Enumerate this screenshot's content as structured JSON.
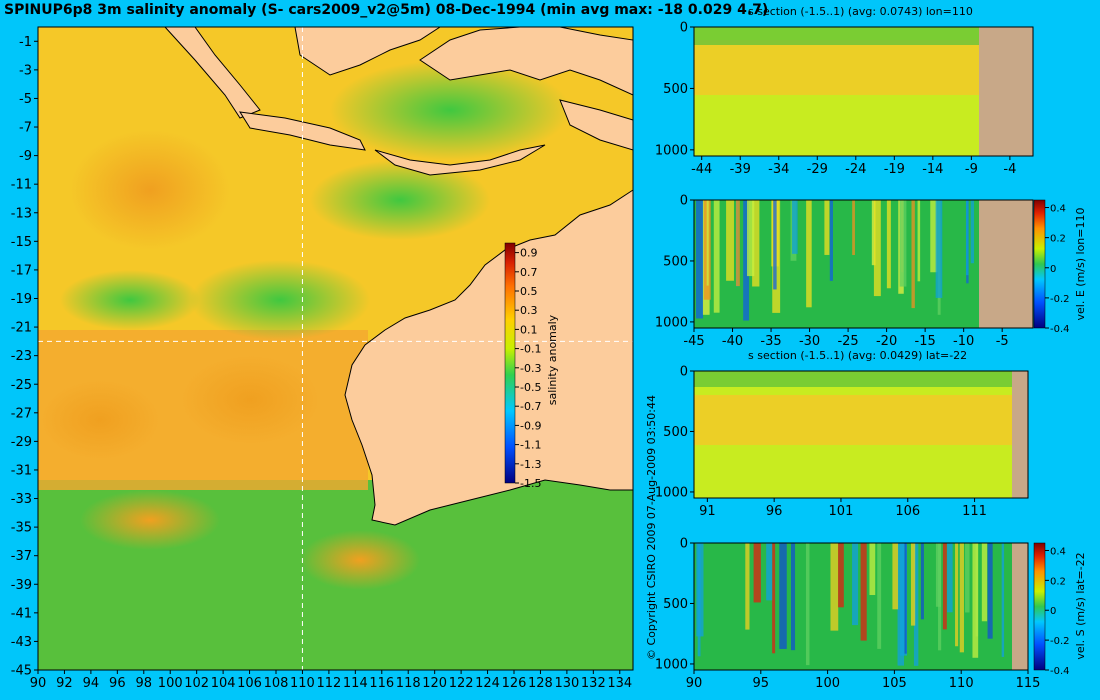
{
  "title": "SPINUP6p8 3m salinity anomaly (S- cars2009_v2@5m) 08-Dec-1994 (min avg max: -18 0.029 4.7)",
  "copyright": "© Copyright CSIRO 2009   07-Aug-2009 03:50:44",
  "colors": {
    "background": "#00c6fa",
    "land": "#fccc9c",
    "section_land": "#c8a888"
  },
  "chart_data": [
    {
      "type": "heatmap",
      "name": "map",
      "x_ticks": [
        "90",
        "92",
        "94",
        "96",
        "98",
        "100",
        "102",
        "104",
        "106",
        "108",
        "110",
        "112",
        "114",
        "116",
        "118",
        "120",
        "122",
        "124",
        "126",
        "128",
        "130",
        "132",
        "134"
      ],
      "y_ticks": [
        "-1",
        "-3",
        "-5",
        "-7",
        "-9",
        "-11",
        "-13",
        "-15",
        "-17",
        "-19",
        "-21",
        "-23",
        "-25",
        "-27",
        "-29",
        "-31",
        "-33",
        "-35",
        "-37",
        "-39",
        "-41",
        "-43",
        "-45"
      ],
      "xlim": [
        90,
        135
      ],
      "ylim": [
        -45,
        0
      ],
      "crosshair": {
        "lon": 110,
        "lat": -22
      },
      "colorbar": {
        "label": "salinity anomaly",
        "ticks": [
          "0.9",
          "0.7",
          "0.5",
          "0.3",
          "0.1",
          "-0.1",
          "-0.3",
          "-0.5",
          "-0.7",
          "-0.9",
          "-1.1",
          "-1.3",
          "-1.5"
        ],
        "range": [
          -1.5,
          1.0
        ]
      }
    },
    {
      "type": "heatmap",
      "name": "s-section-lon",
      "title": "s section (-1.5..1) (avg: 0.0743) lon=110",
      "x_ticks": [
        "-44",
        "-39",
        "-34",
        "-29",
        "-24",
        "-19",
        "-14",
        "-9",
        "-4"
      ],
      "y_ticks": [
        "0",
        "500",
        "1000"
      ],
      "xlim": [
        -45,
        -1
      ],
      "ylim": [
        1050,
        0
      ],
      "land_from": -8
    },
    {
      "type": "heatmap",
      "name": "vel-e-section",
      "x_ticks": [
        "-45",
        "-40",
        "-35",
        "-30",
        "-25",
        "-20",
        "-15",
        "-10",
        "-5"
      ],
      "y_ticks": [
        "0",
        "500",
        "1000"
      ],
      "xlim": [
        -45,
        -1
      ],
      "ylim": [
        1050,
        0
      ],
      "land_from": -8,
      "colorbar": {
        "label": "vel. E (m/s) lon=110",
        "ticks": [
          "0.4",
          "0.2",
          "0",
          "-0.2",
          "-0.4"
        ],
        "range": [
          -0.4,
          0.45
        ]
      }
    },
    {
      "type": "heatmap",
      "name": "s-section-lat",
      "title": "s section (-1.5..1) (avg: 0.0429) lat=-22",
      "x_ticks": [
        "91",
        "96",
        "101",
        "106",
        "111"
      ],
      "y_ticks": [
        "0",
        "500",
        "1000"
      ],
      "xlim": [
        90,
        115
      ],
      "ylim": [
        1050,
        0
      ],
      "land_from": 113.5
    },
    {
      "type": "heatmap",
      "name": "vel-s-section",
      "x_ticks": [
        "90",
        "95",
        "100",
        "105",
        "110",
        "115"
      ],
      "y_ticks": [
        "0",
        "500",
        "1000"
      ],
      "xlim": [
        90,
        115
      ],
      "ylim": [
        1050,
        0
      ],
      "land_from": 113.5,
      "colorbar": {
        "label": "vel. S (m/s) lat=-22",
        "ticks": [
          "0.4",
          "0.2",
          "0",
          "-0.2",
          "-0.4"
        ],
        "range": [
          -0.4,
          0.45
        ]
      }
    }
  ]
}
